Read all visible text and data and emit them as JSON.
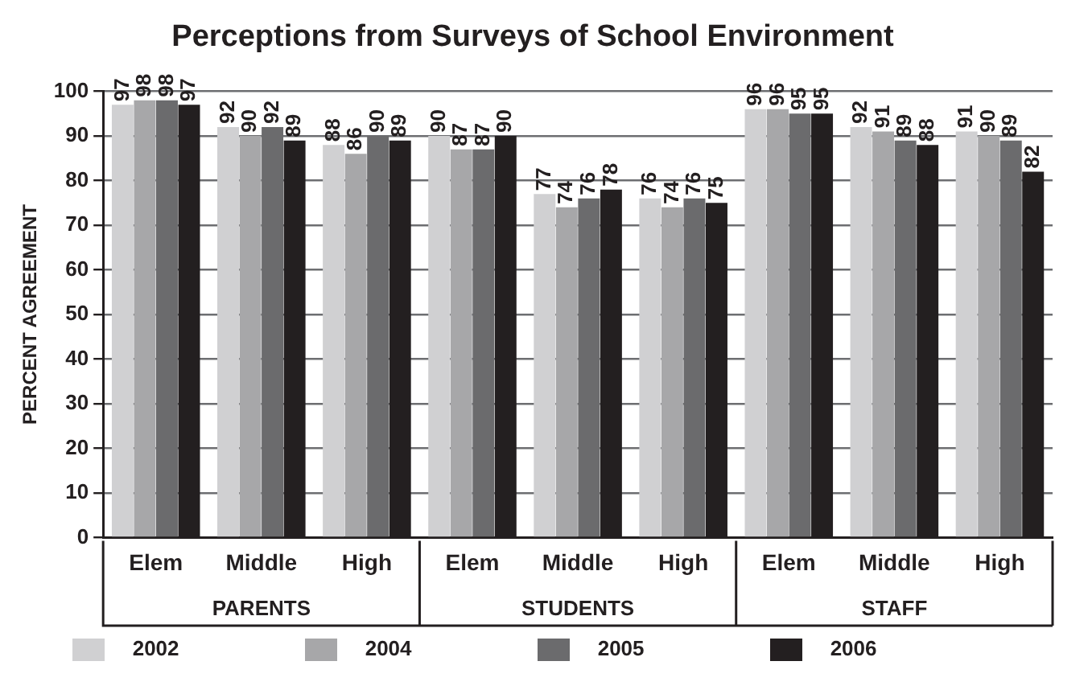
{
  "chart_data": {
    "type": "bar",
    "title": "Perceptions from Surveys of School Environment",
    "ylabel": "PERCENT AGREEMENT",
    "categories": [
      "Elem",
      "Middle",
      "High",
      "Elem",
      "Middle",
      "High",
      "Elem",
      "Middle",
      "High"
    ],
    "annotations": [
      "PARENTS",
      "STUDENTS",
      "STAFF"
    ],
    "series": [
      {
        "name": "2002",
        "color": "#d0d0d2",
        "values": [
          97,
          92,
          88,
          90,
          77,
          76,
          96,
          92,
          91
        ]
      },
      {
        "name": "2004",
        "color": "#a7a7a9",
        "values": [
          98,
          90,
          86,
          87,
          74,
          74,
          96,
          91,
          90
        ]
      },
      {
        "name": "2005",
        "color": "#6b6b6d",
        "values": [
          98,
          92,
          90,
          87,
          76,
          76,
          95,
          89,
          89
        ]
      },
      {
        "name": "2006",
        "color": "#231f20",
        "values": [
          97,
          89,
          89,
          90,
          78,
          75,
          95,
          88,
          82
        ]
      }
    ],
    "ylim": [
      0,
      100
    ],
    "yticks": [
      0,
      10,
      20,
      30,
      40,
      50,
      60,
      70,
      80,
      90,
      100
    ],
    "grid": "y",
    "legend": "bottom",
    "data_labels": true
  }
}
